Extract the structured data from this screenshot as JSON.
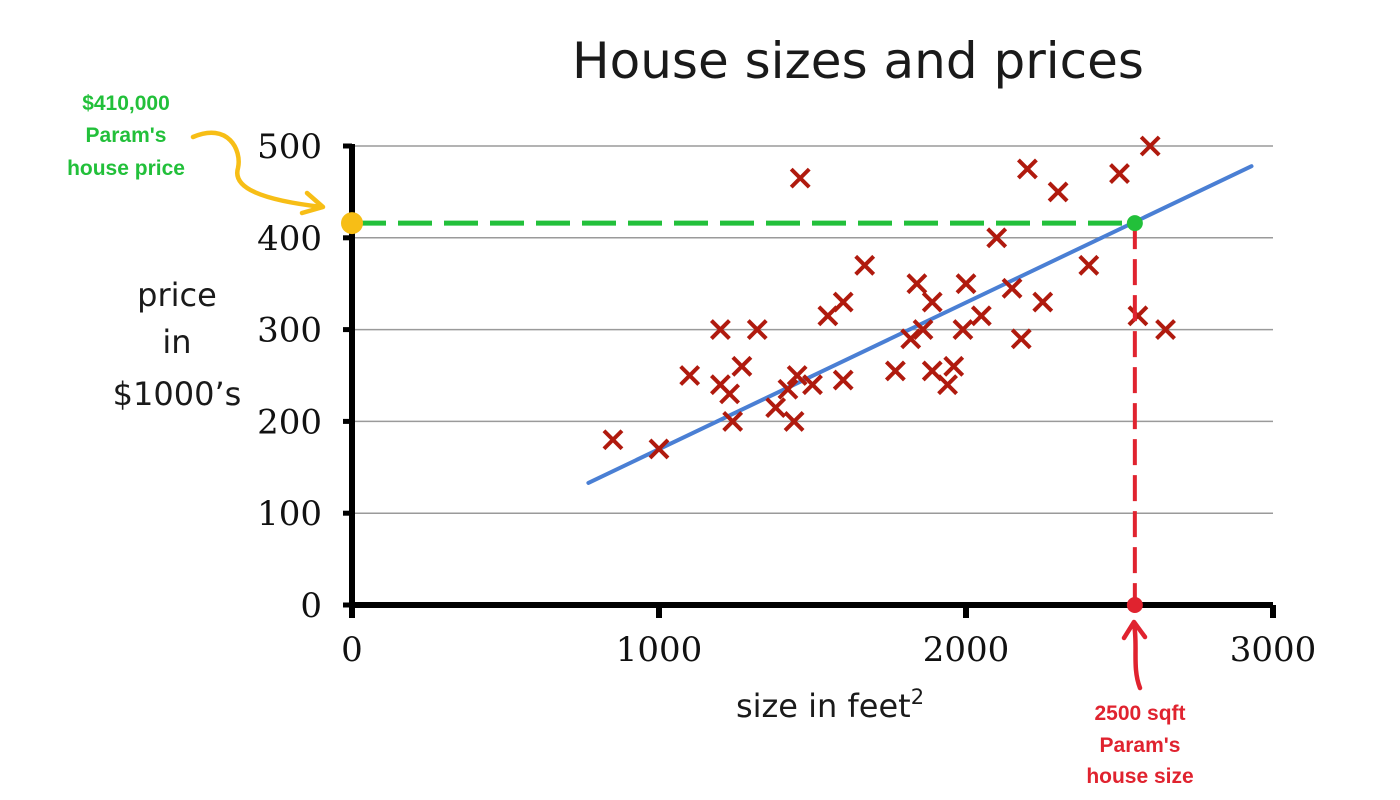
{
  "chart_data": {
    "type": "scatter",
    "title": "House sizes and prices",
    "xlabel": "size in feet",
    "xlabel_superscript": "2",
    "ylabel": [
      "price",
      "in",
      "$1000’s"
    ],
    "xlim": [
      0,
      3000
    ],
    "ylim": [
      0,
      500
    ],
    "xticks": [
      0,
      1000,
      2000,
      3000
    ],
    "yticks": [
      0,
      100,
      200,
      300,
      400,
      500
    ],
    "grid": true,
    "series": [
      {
        "marker": "x",
        "color": "#b01a0e",
        "points": [
          [
            850,
            180
          ],
          [
            1000,
            170
          ],
          [
            1100,
            250
          ],
          [
            1200,
            300
          ],
          [
            1200,
            240
          ],
          [
            1230,
            230
          ],
          [
            1240,
            200
          ],
          [
            1270,
            260
          ],
          [
            1320,
            300
          ],
          [
            1380,
            215
          ],
          [
            1420,
            235
          ],
          [
            1440,
            200
          ],
          [
            1450,
            250
          ],
          [
            1460,
            465
          ],
          [
            1500,
            240
          ],
          [
            1550,
            315
          ],
          [
            1600,
            330
          ],
          [
            1600,
            245
          ],
          [
            1670,
            370
          ],
          [
            1770,
            255
          ],
          [
            1820,
            290
          ],
          [
            1840,
            350
          ],
          [
            1860,
            300
          ],
          [
            1890,
            330
          ],
          [
            1890,
            255
          ],
          [
            1940,
            240
          ],
          [
            1960,
            260
          ],
          [
            1990,
            300
          ],
          [
            2000,
            350
          ],
          [
            2050,
            315
          ],
          [
            2100,
            400
          ],
          [
            2150,
            345
          ],
          [
            2180,
            290
          ],
          [
            2200,
            475
          ],
          [
            2250,
            330
          ],
          [
            2300,
            450
          ],
          [
            2400,
            370
          ],
          [
            2500,
            470
          ],
          [
            2560,
            315
          ],
          [
            2600,
            500
          ],
          [
            2650,
            300
          ]
        ]
      },
      {
        "type": "line",
        "color": "#4a7fd4",
        "points": [
          [
            770,
            133
          ],
          [
            2930,
            478
          ]
        ]
      }
    ]
  },
  "annotations": {
    "price_value": "$410,000",
    "price_line1": "Param's",
    "price_line2": "house price",
    "size_value": "2500 sqft",
    "size_line1": "Param's",
    "size_line2": "house size",
    "highlight_x": 2550,
    "highlight_y": 416,
    "colors": {
      "price": "#22c03a",
      "size": "#e0232f",
      "origin_marker": "#f7be16"
    }
  }
}
